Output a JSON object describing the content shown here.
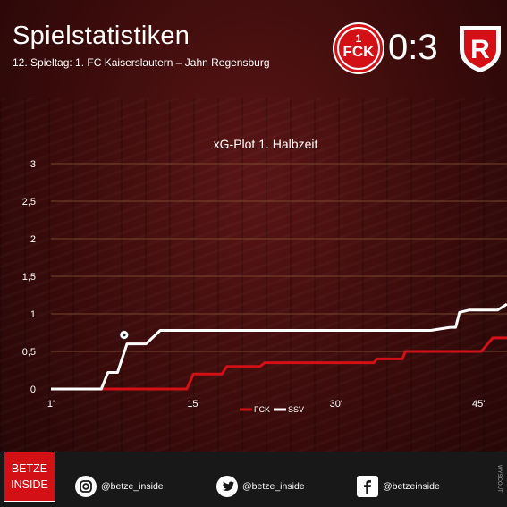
{
  "header": {
    "title": "Spielstatistiken",
    "subtitle": "12. Spieltag: 1. FC Kaiserslautern – Jahn Regensburg",
    "score": "0:3",
    "home_logo_text": "FCK",
    "away_logo_text": "R"
  },
  "footer": {
    "logo_line1": "BETZE",
    "logo_line2": "INSIDE",
    "instagram": "@betze_inside",
    "twitter": "@betze_inside",
    "facebook": "@betzeinside",
    "watermark": "WYSCOUT"
  },
  "colors": {
    "fck": "#d31016",
    "ssv": "#ffffff",
    "grid": "#8a5a3a"
  },
  "chart_data": {
    "type": "line",
    "title": "xG-Plot 1. Halbzeit",
    "xlim": [
      0,
      48
    ],
    "ylim": [
      0,
      3
    ],
    "yticks": [
      0,
      0.5,
      1,
      1.5,
      2,
      2.5,
      3
    ],
    "ytick_labels": [
      "0",
      "0,5",
      "1",
      "1,5",
      "2",
      "2,5",
      "3"
    ],
    "xticks": [
      0,
      15,
      30,
      45
    ],
    "xtick_labels": [
      "1'",
      "15'",
      "30'",
      "45'"
    ],
    "goal_markers": [
      {
        "series": "SSV",
        "x": 7.7,
        "y": 0.72
      }
    ],
    "series": [
      {
        "name": "FCK",
        "color": "#d31016",
        "points": [
          [
            0,
            0
          ],
          [
            14.3,
            0
          ],
          [
            15,
            0.2
          ],
          [
            18,
            0.2
          ],
          [
            18.5,
            0.3
          ],
          [
            22,
            0.3
          ],
          [
            22.5,
            0.35
          ],
          [
            27,
            0.35
          ],
          [
            34,
            0.35
          ],
          [
            34.3,
            0.4
          ],
          [
            37,
            0.4
          ],
          [
            37.3,
            0.5
          ],
          [
            45.3,
            0.5
          ],
          [
            46.5,
            0.68
          ],
          [
            48,
            0.68
          ]
        ]
      },
      {
        "name": "SSV",
        "color": "#ffffff",
        "points": [
          [
            0,
            0
          ],
          [
            5.3,
            0
          ],
          [
            6,
            0.22
          ],
          [
            7,
            0.22
          ],
          [
            8,
            0.6
          ],
          [
            10,
            0.6
          ],
          [
            11.5,
            0.78
          ],
          [
            40,
            0.78
          ],
          [
            42,
            0.82
          ],
          [
            42.6,
            0.82
          ],
          [
            43,
            1.02
          ],
          [
            44,
            1.05
          ],
          [
            47,
            1.05
          ],
          [
            48,
            1.13
          ]
        ]
      }
    ]
  }
}
